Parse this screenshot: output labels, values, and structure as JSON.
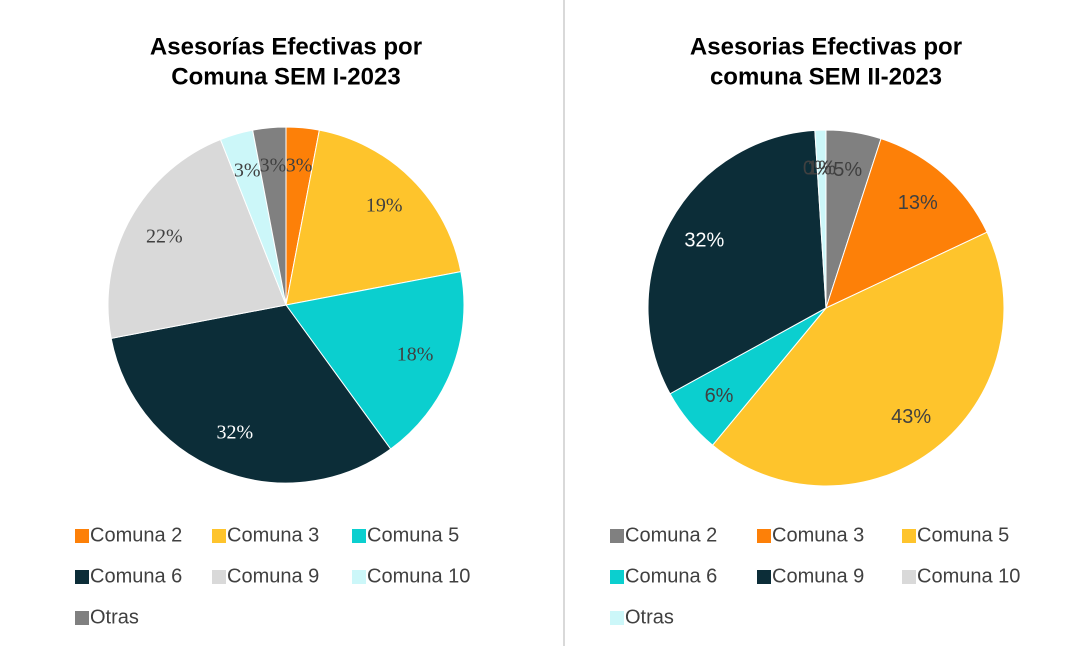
{
  "chart_data": [
    {
      "type": "pie",
      "title": [
        "Asesorías Efectivas por",
        "Comuna SEM I-2023"
      ],
      "categories": [
        "Comuna 2",
        "Comuna 3",
        "Comuna 5",
        "Comuna 6",
        "Comuna 9",
        "Comuna 10",
        "Otras"
      ],
      "values": [
        3,
        19,
        18,
        32,
        22,
        3,
        3
      ],
      "value_labels": [
        "3%",
        "19%",
        "18%",
        "32%",
        "22%",
        "3%",
        "3%"
      ],
      "colors": [
        "#fd8008",
        "#fec42c",
        "#0bcfcf",
        "#0c2d38",
        "#d9d9d9",
        "#ccf7f9",
        "#808080"
      ],
      "label_font": "serif"
    },
    {
      "type": "pie",
      "title": [
        "Asesorias Efectivas por",
        "comuna SEM II-2023"
      ],
      "categories": [
        "Comuna 2",
        "Comuna 3",
        "Comuna 5",
        "Comuna 6",
        "Comuna 9",
        "Comuna 10",
        "Otras"
      ],
      "values": [
        5,
        13,
        43,
        6,
        32,
        0,
        1
      ],
      "value_labels": [
        "5%",
        "13%",
        "43%",
        "6%",
        "32%",
        "0%",
        "1%"
      ],
      "colors": [
        "#808080",
        "#fd8008",
        "#fec42c",
        "#0bcfcf",
        "#0c2d38",
        "#d9d9d9",
        "#ccf7f9"
      ],
      "label_font": "sans-serif"
    }
  ]
}
